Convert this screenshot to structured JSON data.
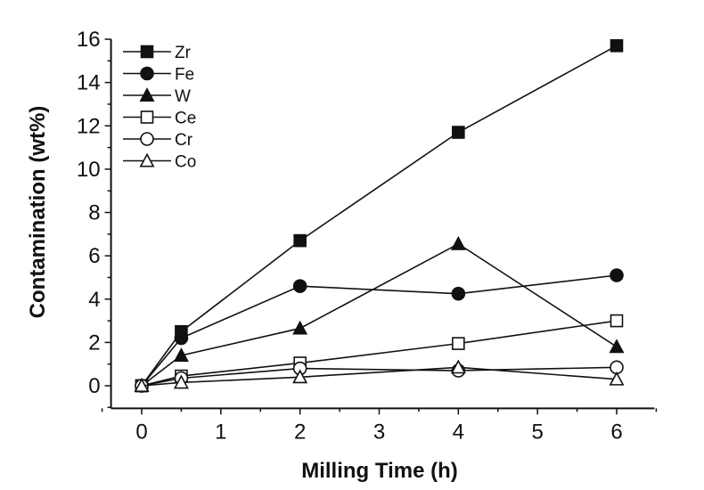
{
  "chart_data": {
    "type": "line",
    "title": "",
    "xlabel": "Milling Time (h)",
    "ylabel": "Contamination (wt%)",
    "xlim": [
      -0.5,
      6.5
    ],
    "ylim": [
      -1,
      16
    ],
    "xticks": [
      0,
      1,
      2,
      3,
      4,
      5,
      6
    ],
    "yticks": [
      0,
      2,
      4,
      6,
      8,
      10,
      12,
      14,
      16
    ],
    "grid": false,
    "legend_position": "top-left",
    "x": [
      0,
      0.5,
      2,
      4,
      6
    ],
    "series": [
      {
        "name": "Zr",
        "marker": "square",
        "filled": true,
        "values": [
          0,
          2.5,
          6.7,
          11.7,
          15.7
        ]
      },
      {
        "name": "Fe",
        "marker": "circle",
        "filled": true,
        "values": [
          0,
          2.2,
          4.6,
          4.25,
          5.1
        ]
      },
      {
        "name": "W",
        "marker": "triangle",
        "filled": true,
        "values": [
          0,
          1.4,
          2.65,
          6.55,
          1.8
        ]
      },
      {
        "name": "Ce",
        "marker": "square",
        "filled": false,
        "values": [
          0,
          0.45,
          1.05,
          1.95,
          3.0
        ]
      },
      {
        "name": "Cr",
        "marker": "circle",
        "filled": false,
        "values": [
          0,
          0.35,
          0.8,
          0.7,
          0.85
        ]
      },
      {
        "name": "Co",
        "marker": "triangle",
        "filled": false,
        "values": [
          0,
          0.15,
          0.4,
          0.85,
          0.3
        ]
      }
    ],
    "colors": {
      "line": "#111111",
      "background": "#ffffff"
    }
  }
}
